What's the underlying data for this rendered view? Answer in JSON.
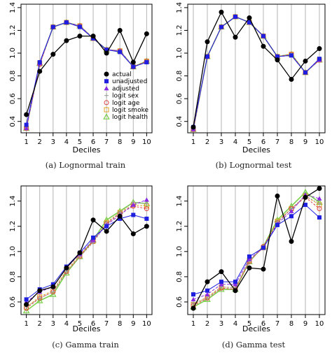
{
  "colors": {
    "actual": "#000000",
    "unadjusted": "#1f1fe0",
    "adjusted": "#8a2be2",
    "logit_sex": "#9a9a9a",
    "logit_age": "#e04040",
    "logit_smoke": "#e0a020",
    "logit_health": "#7ad04a"
  },
  "legend": {
    "placement": "inside panel (a), lower right",
    "entries": [
      "actual",
      "unadjusted",
      "adjusted",
      "logit sex",
      "logit age",
      "logit smoke",
      "logit health"
    ]
  },
  "chart_data": [
    {
      "type": "line",
      "caption": "(a) Lognormal train",
      "xlabel": "Deciles",
      "ylabel": "",
      "x": [
        1,
        2,
        3,
        4,
        5,
        6,
        7,
        8,
        9,
        10
      ],
      "xticks": [
        "1",
        "2",
        "3",
        "4",
        "5",
        "6",
        "7",
        "8",
        "9",
        "10"
      ],
      "ylim": [
        0.3,
        1.43
      ],
      "yticks": [
        0.4,
        0.6,
        0.8,
        1.0,
        1.2,
        1.4
      ],
      "ytick_labels": [
        "0.4",
        "0.6",
        "0.8",
        "1.0",
        "1.2",
        "1.4"
      ],
      "grid": "vertical lines at each decile",
      "series": [
        {
          "name": "actual",
          "values": [
            0.46,
            0.84,
            0.99,
            1.11,
            1.15,
            1.15,
            1.0,
            1.2,
            0.92,
            1.17
          ]
        },
        {
          "name": "unadjusted",
          "values": [
            0.37,
            0.92,
            1.23,
            1.27,
            1.23,
            1.13,
            1.03,
            1.01,
            0.88,
            0.92
          ]
        },
        {
          "name": "adjusted",
          "values": [
            0.34,
            0.91,
            1.23,
            1.27,
            1.24,
            1.13,
            1.03,
            1.02,
            0.88,
            0.92
          ]
        },
        {
          "name": "logit sex",
          "values": [
            0.34,
            0.91,
            1.23,
            1.27,
            1.24,
            1.13,
            1.03,
            1.02,
            0.88,
            0.92
          ]
        },
        {
          "name": "logit age",
          "values": [
            0.34,
            0.9,
            1.23,
            1.27,
            1.24,
            1.13,
            1.03,
            1.02,
            0.88,
            0.93
          ]
        },
        {
          "name": "logit smoke",
          "values": [
            0.34,
            0.91,
            1.23,
            1.27,
            1.24,
            1.13,
            1.03,
            1.02,
            0.88,
            0.93
          ]
        },
        {
          "name": "logit health",
          "values": [
            0.34,
            0.91,
            1.23,
            1.27,
            1.24,
            1.13,
            1.03,
            1.02,
            0.88,
            0.93
          ]
        }
      ]
    },
    {
      "type": "line",
      "caption": "(b) Lognormal test",
      "xlabel": "Deciles",
      "ylabel": "",
      "x": [
        1,
        2,
        3,
        4,
        5,
        6,
        7,
        8,
        9,
        10
      ],
      "xticks": [
        "1",
        "2",
        "3",
        "4",
        "5",
        "6",
        "7",
        "8",
        "9",
        "10"
      ],
      "ylim": [
        0.3,
        1.43
      ],
      "yticks": [
        0.4,
        0.6,
        0.8,
        1.0,
        1.2,
        1.4
      ],
      "ytick_labels": [
        "0.4",
        "0.6",
        "0.8",
        "1.0",
        "1.2",
        "1.4"
      ],
      "grid": "vertical lines at each decile",
      "series": [
        {
          "name": "actual",
          "values": [
            0.35,
            1.1,
            1.36,
            1.14,
            1.31,
            1.06,
            0.94,
            0.77,
            0.93,
            1.04
          ]
        },
        {
          "name": "unadjusted",
          "values": [
            0.35,
            0.97,
            1.23,
            1.32,
            1.27,
            1.15,
            0.97,
            0.98,
            0.83,
            0.95
          ]
        },
        {
          "name": "adjusted",
          "values": [
            0.33,
            0.97,
            1.23,
            1.32,
            1.27,
            1.15,
            0.97,
            0.98,
            0.83,
            0.94
          ]
        },
        {
          "name": "logit sex",
          "values": [
            0.33,
            0.97,
            1.23,
            1.32,
            1.27,
            1.15,
            0.97,
            0.98,
            0.83,
            0.94
          ]
        },
        {
          "name": "logit age",
          "values": [
            0.33,
            0.97,
            1.23,
            1.32,
            1.27,
            1.15,
            0.97,
            0.99,
            0.83,
            0.94
          ]
        },
        {
          "name": "logit smoke",
          "values": [
            0.33,
            0.97,
            1.23,
            1.32,
            1.27,
            1.15,
            0.97,
            0.99,
            0.83,
            0.94
          ]
        },
        {
          "name": "logit health",
          "values": [
            0.33,
            0.97,
            1.23,
            1.32,
            1.27,
            1.15,
            0.97,
            0.99,
            0.83,
            0.94
          ]
        }
      ]
    },
    {
      "type": "line",
      "caption": "(c) Gamma train",
      "xlabel": "Deciles",
      "ylabel": "",
      "x": [
        1,
        2,
        3,
        4,
        5,
        6,
        7,
        8,
        9,
        10
      ],
      "xticks": [
        "1",
        "2",
        "3",
        "4",
        "5",
        "6",
        "7",
        "8",
        "9",
        "10"
      ],
      "ylim": [
        0.5,
        1.52
      ],
      "yticks": [
        0.6,
        0.8,
        1.0,
        1.2,
        1.4
      ],
      "ytick_labels": [
        "0.6",
        "0.8",
        "1.0",
        "1.2",
        "1.4"
      ],
      "grid": "vertical lines at each decile",
      "series": [
        {
          "name": "actual",
          "values": [
            0.58,
            0.69,
            0.72,
            0.87,
            0.99,
            1.25,
            1.16,
            1.28,
            1.14,
            1.2
          ]
        },
        {
          "name": "unadjusted",
          "values": [
            0.62,
            0.7,
            0.74,
            0.88,
            0.99,
            1.11,
            1.2,
            1.26,
            1.29,
            1.26
          ]
        },
        {
          "name": "adjusted",
          "values": [
            0.6,
            0.68,
            0.72,
            0.87,
            0.98,
            1.09,
            1.21,
            1.29,
            1.37,
            1.41
          ]
        },
        {
          "name": "logit sex",
          "values": [
            0.56,
            0.63,
            0.68,
            0.84,
            0.96,
            1.07,
            1.22,
            1.31,
            1.39,
            1.38
          ]
        },
        {
          "name": "logit age",
          "values": [
            0.55,
            0.63,
            0.68,
            0.84,
            0.96,
            1.08,
            1.22,
            1.3,
            1.36,
            1.34
          ]
        },
        {
          "name": "logit smoke",
          "values": [
            0.56,
            0.64,
            0.69,
            0.85,
            0.97,
            1.08,
            1.23,
            1.31,
            1.37,
            1.36
          ]
        },
        {
          "name": "logit health",
          "values": [
            0.53,
            0.61,
            0.66,
            0.83,
            0.96,
            1.09,
            1.25,
            1.32,
            1.39,
            1.38
          ]
        }
      ]
    },
    {
      "type": "line",
      "caption": "(d) Gamma test",
      "xlabel": "Deciles",
      "ylabel": "",
      "x": [
        1,
        2,
        3,
        4,
        5,
        6,
        7,
        8,
        9,
        10
      ],
      "xticks": [
        "1",
        "2",
        "3",
        "4",
        "5",
        "6",
        "7",
        "8",
        "9",
        "10"
      ],
      "ylim": [
        0.5,
        1.52
      ],
      "yticks": [
        0.6,
        0.8,
        1.0,
        1.2,
        1.4
      ],
      "ytick_labels": [
        "0.6",
        "0.8",
        "1.0",
        "1.2",
        "1.4"
      ],
      "grid": "vertical lines at each decile",
      "series": [
        {
          "name": "actual",
          "values": [
            0.55,
            0.76,
            0.84,
            0.69,
            0.87,
            0.86,
            1.44,
            1.08,
            1.43,
            1.5
          ]
        },
        {
          "name": "unadjusted",
          "values": [
            0.66,
            0.69,
            0.76,
            0.76,
            0.96,
            1.03,
            1.21,
            1.28,
            1.37,
            1.27
          ]
        },
        {
          "name": "adjusted",
          "values": [
            0.62,
            0.66,
            0.74,
            0.74,
            0.94,
            1.03,
            1.22,
            1.32,
            1.45,
            1.42
          ]
        },
        {
          "name": "logit sex",
          "values": [
            0.59,
            0.63,
            0.72,
            0.71,
            0.93,
            1.03,
            1.23,
            1.34,
            1.44,
            1.38
          ]
        },
        {
          "name": "logit age",
          "values": [
            0.57,
            0.63,
            0.71,
            0.7,
            0.92,
            1.04,
            1.23,
            1.34,
            1.43,
            1.34
          ]
        },
        {
          "name": "logit smoke",
          "values": [
            0.58,
            0.64,
            0.72,
            0.71,
            0.93,
            1.03,
            1.24,
            1.34,
            1.44,
            1.37
          ]
        },
        {
          "name": "logit health",
          "values": [
            0.56,
            0.62,
            0.7,
            0.7,
            0.92,
            1.04,
            1.25,
            1.36,
            1.47,
            1.39
          ]
        }
      ]
    }
  ]
}
